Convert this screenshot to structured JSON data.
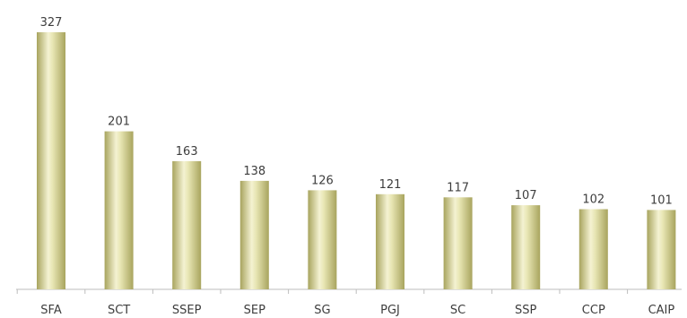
{
  "chart_data": {
    "type": "bar",
    "title": "",
    "xlabel": "",
    "ylabel": "",
    "categories": [
      "SFA",
      "SCT",
      "SSEP",
      "SEP",
      "SG",
      "PGJ",
      "SC",
      "SSP",
      "CCP",
      "CAIP"
    ],
    "values": [
      327,
      201,
      163,
      138,
      126,
      121,
      117,
      107,
      102,
      101
    ],
    "ylim": [
      0,
      340
    ],
    "grid": false,
    "legend": "none",
    "colors": {
      "bar_edge": "#a8a45e",
      "bar_mid": "#e8e6b4",
      "bar_center": "#f4f2d2",
      "axis": "#bdbdbd",
      "text": "#3d3d3d"
    }
  }
}
